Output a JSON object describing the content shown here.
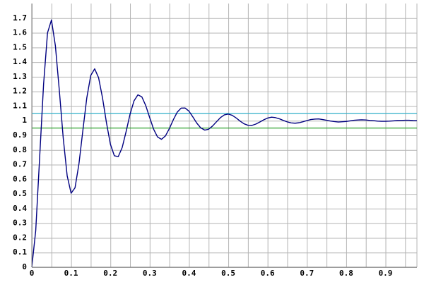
{
  "chart_data": {
    "type": "line",
    "x": [
      0,
      0.01,
      0.02,
      0.03,
      0.04,
      0.05,
      0.06,
      0.07,
      0.08,
      0.09,
      0.1,
      0.11,
      0.12,
      0.13,
      0.14,
      0.15,
      0.16,
      0.17,
      0.18,
      0.19,
      0.2,
      0.21,
      0.22,
      0.23,
      0.24,
      0.25,
      0.26,
      0.27,
      0.28,
      0.29,
      0.3,
      0.31,
      0.32,
      0.33,
      0.34,
      0.35,
      0.36,
      0.37,
      0.38,
      0.39,
      0.4,
      0.41,
      0.42,
      0.43,
      0.44,
      0.45,
      0.46,
      0.47,
      0.48,
      0.49,
      0.5,
      0.51,
      0.52,
      0.53,
      0.54,
      0.55,
      0.56,
      0.57,
      0.58,
      0.59,
      0.6,
      0.61,
      0.62,
      0.63,
      0.64,
      0.65,
      0.66,
      0.67,
      0.68,
      0.69,
      0.7,
      0.71,
      0.72,
      0.73,
      0.74,
      0.75,
      0.76,
      0.77,
      0.78,
      0.79,
      0.8,
      0.81,
      0.82,
      0.83,
      0.84,
      0.85,
      0.86,
      0.87,
      0.88,
      0.89,
      0.9,
      0.91,
      0.92,
      0.93,
      0.94,
      0.95,
      0.96,
      0.97,
      0.98
    ],
    "series": [
      {
        "color": "#000080",
        "values": [
          0,
          0.25,
          0.75,
          1.25,
          1.6,
          1.688,
          1.512,
          1.208,
          0.881,
          0.624,
          0.505,
          0.542,
          0.706,
          0.935,
          1.157,
          1.309,
          1.354,
          1.293,
          1.155,
          0.986,
          0.84,
          0.761,
          0.755,
          0.817,
          0.926,
          1.044,
          1.135,
          1.177,
          1.163,
          1.103,
          1.021,
          0.942,
          0.889,
          0.873,
          0.896,
          0.946,
          1.006,
          1.058,
          1.086,
          1.087,
          1.065,
          1.025,
          0.983,
          0.951,
          0.936,
          0.942,
          0.964,
          0.993,
          1.021,
          1.04,
          1.045,
          1.037,
          1.019,
          0.997,
          0.979,
          0.969,
          0.968,
          0.977,
          0.991,
          1.006,
          1.018,
          1.024,
          1.021,
          1.013,
          1.002,
          0.992,
          0.985,
          0.983,
          0.986,
          0.993,
          1.001,
          1.008,
          1.011,
          1.012,
          1.008,
          1.003,
          0.998,
          0.994,
          0.991,
          0.993,
          0.995,
          0.999,
          1.003,
          1.005,
          1.006,
          1.005,
          1.002,
          1.0,
          0.997,
          0.996,
          0.996,
          0.997,
          0.999,
          1.001,
          1.002,
          1.003,
          1.003,
          1.001,
          1.0
        ]
      }
    ],
    "hlines": [
      {
        "value": 1.05,
        "color": "#40b4cc"
      },
      {
        "value": 0.95,
        "color": "#2ca02c"
      }
    ],
    "xlim": [
      0,
      0.98
    ],
    "ylim": [
      0,
      1.8
    ],
    "xticks": [
      0,
      0.1,
      0.2,
      0.3,
      0.4,
      0.5,
      0.6,
      0.7,
      0.8,
      0.9
    ],
    "yticks": [
      0,
      0.1,
      0.2,
      0.3,
      0.4,
      0.5,
      0.6,
      0.7,
      0.8,
      0.9,
      1,
      1.1,
      1.2,
      1.3,
      1.4,
      1.5,
      1.6,
      1.7
    ],
    "xgrid_minor": [
      0.05,
      0.15,
      0.25,
      0.35,
      0.45,
      0.55,
      0.65,
      0.75,
      0.85,
      0.95
    ],
    "grid": true
  }
}
